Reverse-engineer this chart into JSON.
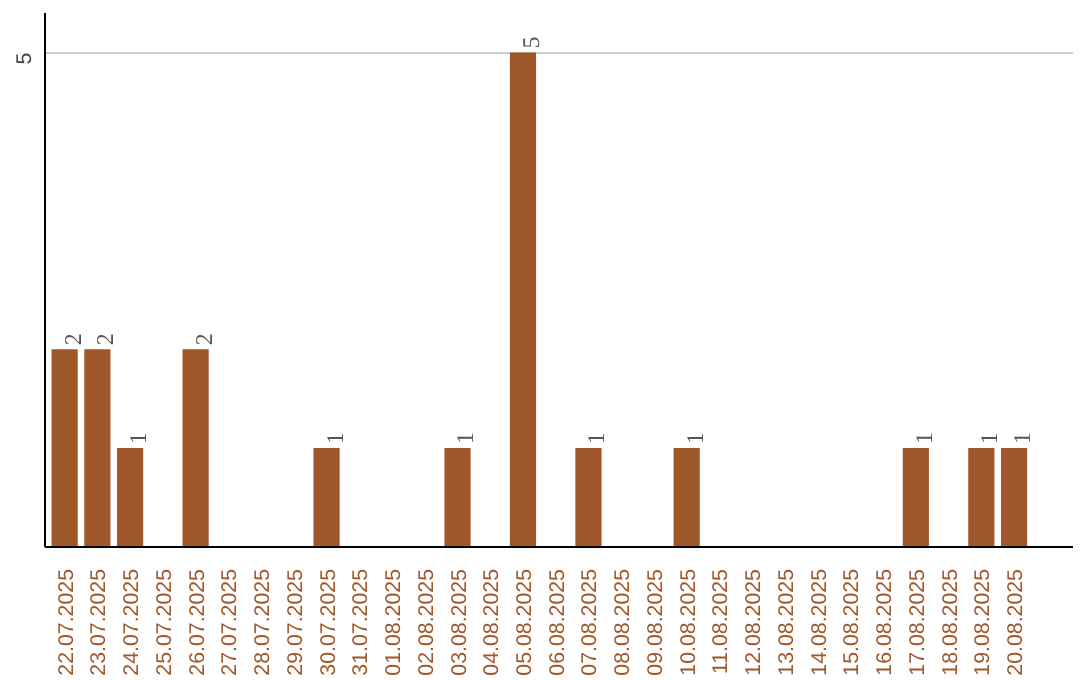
{
  "chart_data": {
    "type": "bar",
    "categories": [
      "22.07.2025",
      "23.07.2025",
      "24.07.2025",
      "25.07.2025",
      "26.07.2025",
      "27.07.2025",
      "28.07.2025",
      "29.07.2025",
      "30.07.2025",
      "31.07.2025",
      "01.08.2025",
      "02.08.2025",
      "03.08.2025",
      "04.08.2025",
      "05.08.2025",
      "06.08.2025",
      "07.08.2025",
      "08.08.2025",
      "09.08.2025",
      "10.08.2025",
      "11.08.2025",
      "12.08.2025",
      "13.08.2025",
      "14.08.2025",
      "15.08.2025",
      "16.08.2025",
      "17.08.2025",
      "18.08.2025",
      "19.08.2025",
      "20.08.2025"
    ],
    "values": [
      2,
      2,
      1,
      0,
      2,
      0,
      0,
      0,
      1,
      0,
      0,
      0,
      1,
      0,
      5,
      0,
      1,
      0,
      0,
      1,
      0,
      0,
      0,
      0,
      0,
      0,
      1,
      0,
      1,
      1
    ],
    "value_labels": [
      "2",
      "2",
      "1",
      null,
      "2",
      null,
      null,
      null,
      "1",
      null,
      null,
      null,
      "1",
      null,
      "5",
      null,
      "1",
      null,
      null,
      "1",
      null,
      null,
      null,
      null,
      null,
      null,
      "1",
      null,
      "1",
      "1"
    ],
    "color": "#a0582a",
    "ylim": [
      0,
      5.4
    ],
    "yticks": [
      5
    ],
    "grid": "y"
  }
}
